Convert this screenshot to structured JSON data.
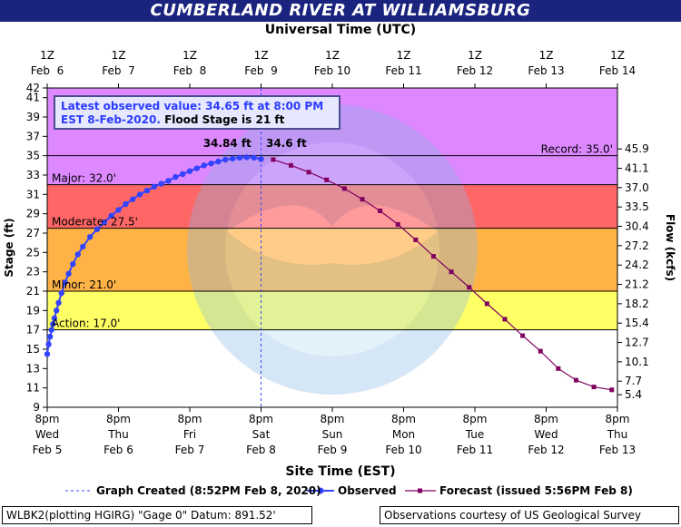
{
  "chart_data": {
    "type": "line",
    "title": "CUMBERLAND RIVER AT WILLIAMSBURG",
    "top_axis_label": "Universal Time (UTC)",
    "top_ticks": [
      {
        "line1": "1Z",
        "line2": "Feb  6"
      },
      {
        "line1": "1Z",
        "line2": "Feb  7"
      },
      {
        "line1": "1Z",
        "line2": "Feb  8"
      },
      {
        "line1": "1Z",
        "line2": "Feb  9"
      },
      {
        "line1": "1Z",
        "line2": "Feb 10"
      },
      {
        "line1": "1Z",
        "line2": "Feb 11"
      },
      {
        "line1": "1Z",
        "line2": "Feb 12"
      },
      {
        "line1": "1Z",
        "line2": "Feb 13"
      },
      {
        "line1": "1Z",
        "line2": "Feb 14"
      }
    ],
    "xlabel": "Site Time (EST)",
    "x_ticks": [
      {
        "line1": "8pm",
        "line2": "Wed",
        "line3": "Feb 5"
      },
      {
        "line1": "8pm",
        "line2": "Thu",
        "line3": "Feb 6"
      },
      {
        "line1": "8pm",
        "line2": "Fri",
        "line3": "Feb 7"
      },
      {
        "line1": "8pm",
        "line2": "Sat",
        "line3": "Feb 8"
      },
      {
        "line1": "8pm",
        "line2": "Sun",
        "line3": "Feb 9"
      },
      {
        "line1": "8pm",
        "line2": "Mon",
        "line3": "Feb 10"
      },
      {
        "line1": "8pm",
        "line2": "Tue",
        "line3": "Feb 11"
      },
      {
        "line1": "8pm",
        "line2": "Wed",
        "line3": "Feb 12"
      },
      {
        "line1": "8pm",
        "line2": "Thu",
        "line3": "Feb 13"
      }
    ],
    "x_unit": "days since 8pm Wed Feb 5 (EST)",
    "xlim": [
      0,
      8
    ],
    "ylabel": "Stage (ft)",
    "ylim": [
      9,
      42
    ],
    "y_ticks": [
      9,
      11,
      13,
      15,
      17,
      19,
      21,
      23,
      25,
      27,
      29,
      31,
      33,
      35,
      37,
      39,
      41,
      42
    ],
    "y2label": "Flow (kcfs)",
    "y2_ticks": [
      {
        "stage": 10.3,
        "label": "5.4"
      },
      {
        "stage": 11.7,
        "label": "7.7"
      },
      {
        "stage": 13.7,
        "label": "10.1"
      },
      {
        "stage": 15.7,
        "label": "12.7"
      },
      {
        "stage": 17.7,
        "label": "15.4"
      },
      {
        "stage": 19.7,
        "label": "18.2"
      },
      {
        "stage": 21.7,
        "label": "21.2"
      },
      {
        "stage": 23.7,
        "label": "24.2"
      },
      {
        "stage": 25.7,
        "label": "27.2"
      },
      {
        "stage": 27.7,
        "label": "30.4"
      },
      {
        "stage": 29.7,
        "label": "33.5"
      },
      {
        "stage": 31.7,
        "label": "37.0"
      },
      {
        "stage": 33.7,
        "label": "41.1"
      },
      {
        "stage": 35.7,
        "label": "45.9"
      }
    ],
    "bands": [
      {
        "name": "Action",
        "label": "Action: 17.0'",
        "from": 17.0,
        "to": 21.0,
        "color": "#ffff66"
      },
      {
        "name": "Minor",
        "label": "Minor: 21.0'",
        "from": 21.0,
        "to": 27.5,
        "color": "#ffb347"
      },
      {
        "name": "Moderate",
        "label": "Moderate: 27.5'",
        "from": 27.5,
        "to": 32.0,
        "color": "#ff6666"
      },
      {
        "name": "Major",
        "label": "Major: 32.0'",
        "from": 32.0,
        "to": 42.0,
        "color": "#dd88ff"
      }
    ],
    "record": {
      "label": "Record: 35.0'",
      "value": 35.0
    },
    "graph_created_x": 3.0,
    "observed_peak_label": "34.84 ft",
    "forecast_start_label": "34.6 ft",
    "observed": {
      "name": "Observed",
      "color": "#3344ff",
      "x": [
        0.0,
        0.02,
        0.04,
        0.06,
        0.08,
        0.1,
        0.13,
        0.16,
        0.2,
        0.25,
        0.3,
        0.36,
        0.43,
        0.5,
        0.6,
        0.7,
        0.8,
        0.9,
        1.0,
        1.1,
        1.2,
        1.3,
        1.4,
        1.5,
        1.6,
        1.7,
        1.8,
        1.9,
        2.0,
        2.1,
        2.2,
        2.3,
        2.4,
        2.5,
        2.6,
        2.7,
        2.8,
        2.9,
        3.0
      ],
      "y": [
        14.5,
        15.5,
        16.3,
        17.0,
        17.6,
        18.2,
        19.0,
        19.8,
        20.8,
        21.9,
        22.8,
        23.8,
        24.8,
        25.6,
        26.6,
        27.4,
        28.1,
        28.8,
        29.4,
        30.0,
        30.5,
        31.0,
        31.4,
        31.8,
        32.1,
        32.4,
        32.8,
        33.1,
        33.4,
        33.7,
        34.0,
        34.2,
        34.4,
        34.6,
        34.7,
        34.8,
        34.84,
        34.8,
        34.65
      ]
    },
    "forecast": {
      "name": "Forecast",
      "color": "#800060",
      "x": [
        3.17,
        3.42,
        3.67,
        3.92,
        4.17,
        4.42,
        4.67,
        4.92,
        5.17,
        5.42,
        5.67,
        5.92,
        6.17,
        6.42,
        6.67,
        6.92,
        7.17,
        7.42,
        7.67,
        7.92
      ],
      "y": [
        34.6,
        34.0,
        33.3,
        32.5,
        31.6,
        30.5,
        29.3,
        27.9,
        26.3,
        24.6,
        23.0,
        21.4,
        19.7,
        18.1,
        16.4,
        14.8,
        13.0,
        11.8,
        11.1,
        10.8
      ]
    }
  },
  "observed_box": {
    "line1_blue": "Latest observed value: 34.65 ft at 8:00 PM",
    "line2_blue": "EST 8-Feb-2020.",
    "line2_black": " Flood Stage is 21 ft"
  },
  "legend": {
    "graph_created": "Graph Created (8:52PM Feb 8, 2020)",
    "observed": "Observed",
    "forecast": "Forecast (issued 5:56PM Feb 8)"
  },
  "footer": {
    "left": "WLBK2(plotting HGIRG) \"Gage 0\" Datum: 891.52'",
    "right": "Observations courtesy of US Geological Survey"
  }
}
